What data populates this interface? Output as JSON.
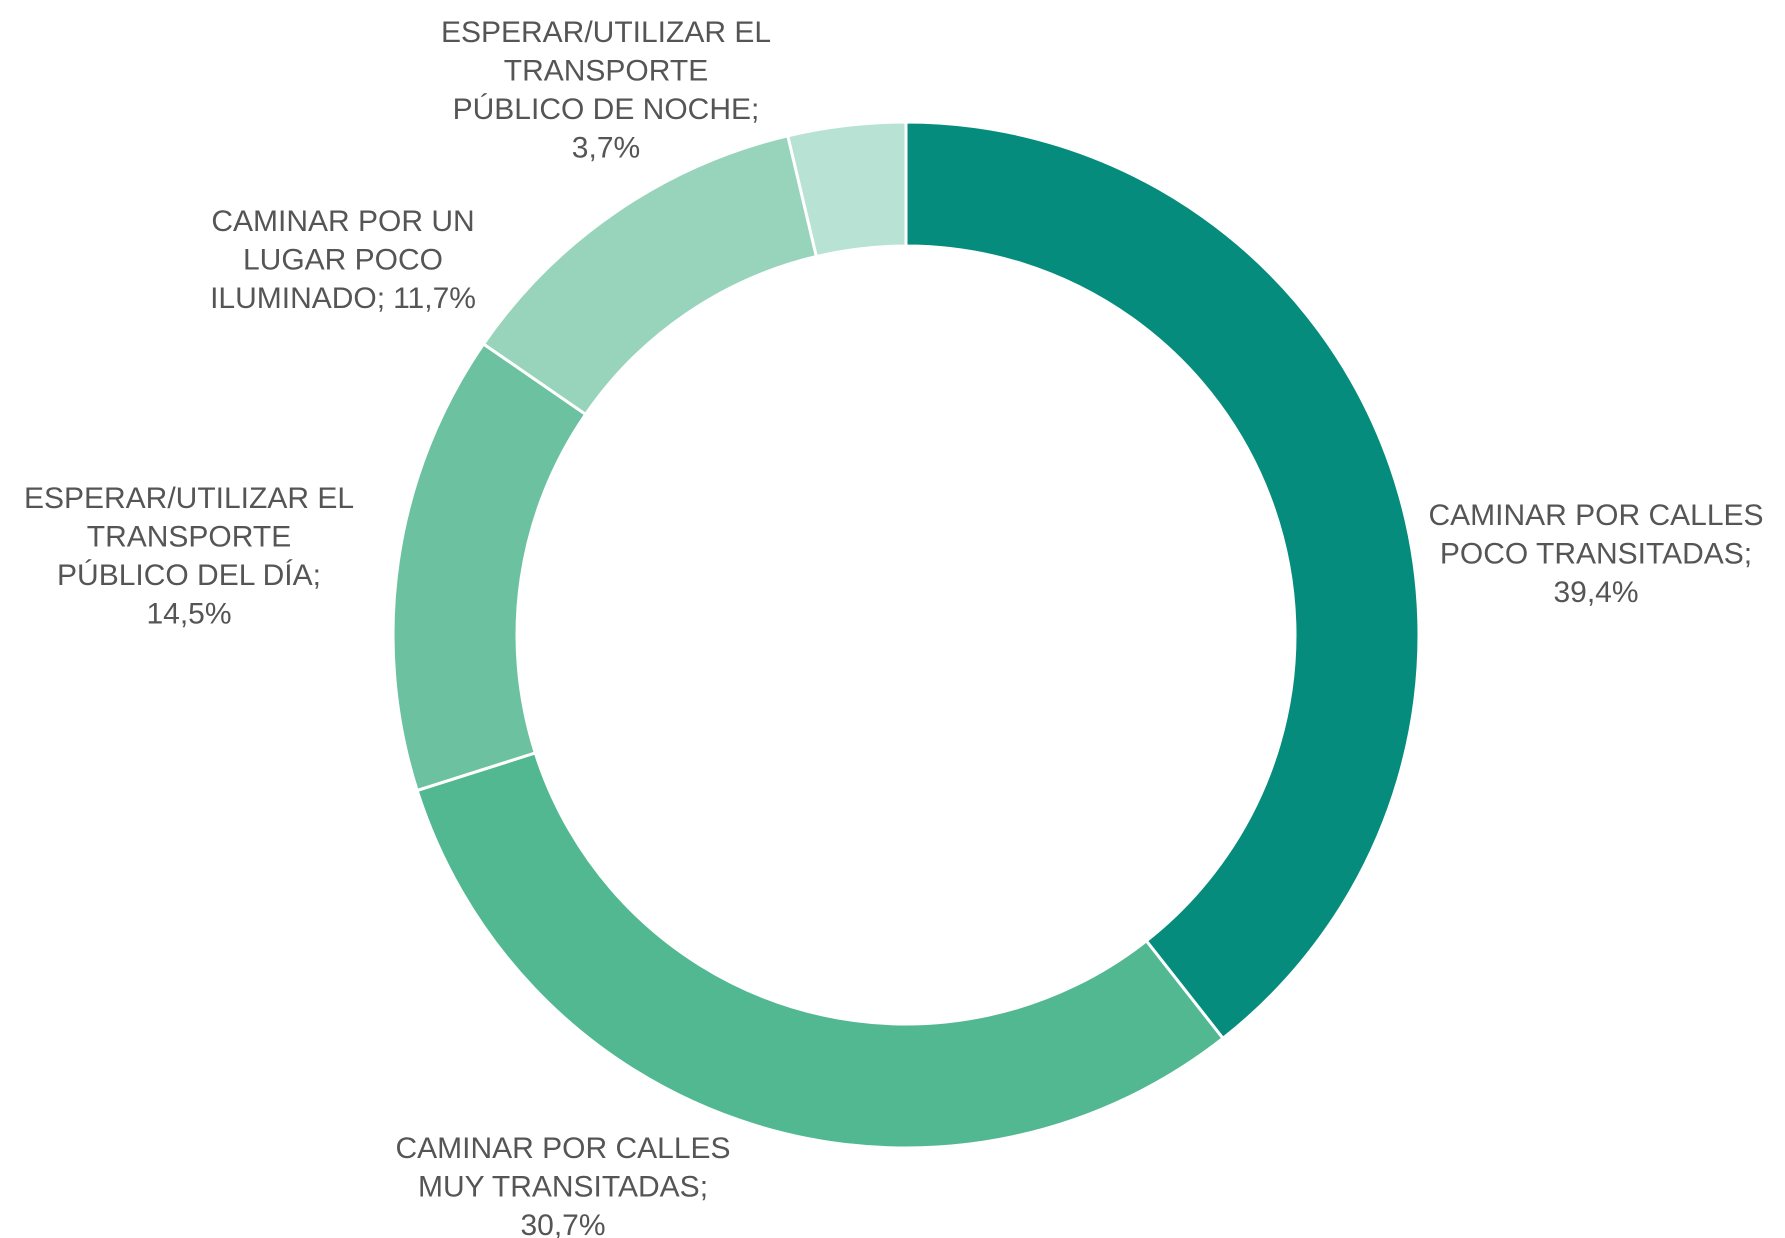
{
  "chart_data": {
    "type": "donut",
    "categories": [
      [
        "CAMINAR POR CALLES",
        "POCO TRANSITADAS;"
      ],
      [
        "CAMINAR POR CALLES",
        "MUY TRANSITADAS;"
      ],
      [
        "ESPERAR/UTILIZAR EL",
        "TRANSPORTE",
        "PÚBLICO DEL DÍA;"
      ],
      [
        "CAMINAR POR UN",
        "LUGAR POCO",
        "ILUMINADO;"
      ],
      [
        "ESPERAR/UTILIZAR EL",
        "TRANSPORTE",
        "PÚBLICO DE NOCHE;"
      ]
    ],
    "values": [
      39.4,
      30.7,
      14.5,
      11.7,
      3.7
    ],
    "value_labels": [
      "39,4%",
      "30,7%",
      "14,5%",
      "11,7%",
      "3,7%"
    ],
    "colors": [
      "#068c7c",
      "#52b892",
      "#6cc1a0",
      "#98d4bc",
      "#b8e2d3"
    ]
  }
}
